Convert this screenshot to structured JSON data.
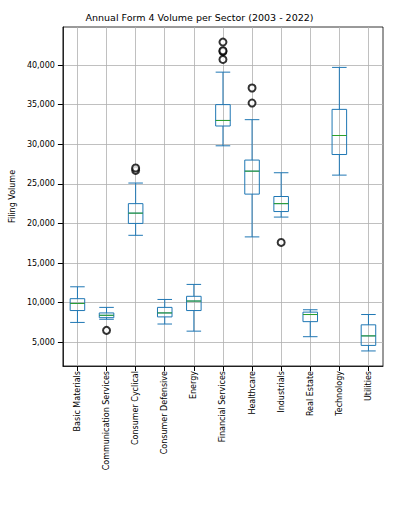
{
  "chart_data": {
    "type": "boxplot",
    "title": "Annual Form 4 Volume per Sector (2003 - 2022)",
    "y_label": "Filing Volume",
    "categories": [
      "Basic Materials",
      "Communication Services",
      "Consumer Cyclical",
      "Consumer Defensive",
      "Energy",
      "Financial Services",
      "Healthcare",
      "Industrials",
      "Real Estate",
      "Technology",
      "Utilities"
    ],
    "values": [
      [
        7500,
        9000,
        9900,
        10500,
        12000
      ],
      [
        7900,
        8100,
        8400,
        8700,
        9400
      ],
      [
        18500,
        20000,
        21300,
        22500,
        25100
      ],
      [
        7300,
        8200,
        8700,
        9400,
        10400
      ],
      [
        6400,
        9000,
        10200,
        10800,
        12300
      ],
      [
        29800,
        32300,
        33000,
        35000,
        39100
      ],
      [
        18300,
        23700,
        26600,
        28000,
        33100
      ],
      [
        20800,
        21500,
        22500,
        23400,
        26400
      ],
      [
        5700,
        7600,
        8500,
        8800,
        9100
      ],
      [
        26100,
        28700,
        31100,
        34400,
        39700
      ],
      [
        3900,
        4600,
        5800,
        7200,
        8500
      ]
    ],
    "outliers": [
      [],
      [
        6500
      ],
      [
        26700,
        27000
      ],
      [],
      [],
      [
        40700,
        41700,
        41800,
        42900
      ],
      [
        35200,
        37100
      ],
      [
        17600
      ],
      [],
      [],
      []
    ],
    "color": "#1f77b4",
    "marker": "circle",
    "ylim": [
      2000,
      44800
    ],
    "yticks": [
      {
        "value": 5000,
        "label": "5,000"
      },
      {
        "value": 10000,
        "label": "10,000"
      },
      {
        "value": 15000,
        "label": "15,000"
      },
      {
        "value": 20000,
        "label": "20,000"
      },
      {
        "value": 25000,
        "label": "25,000"
      },
      {
        "value": 30000,
        "label": "30,000"
      },
      {
        "value": 35000,
        "label": "35,000"
      },
      {
        "value": 40000,
        "label": "40,000"
      }
    ],
    "grid": true
  }
}
